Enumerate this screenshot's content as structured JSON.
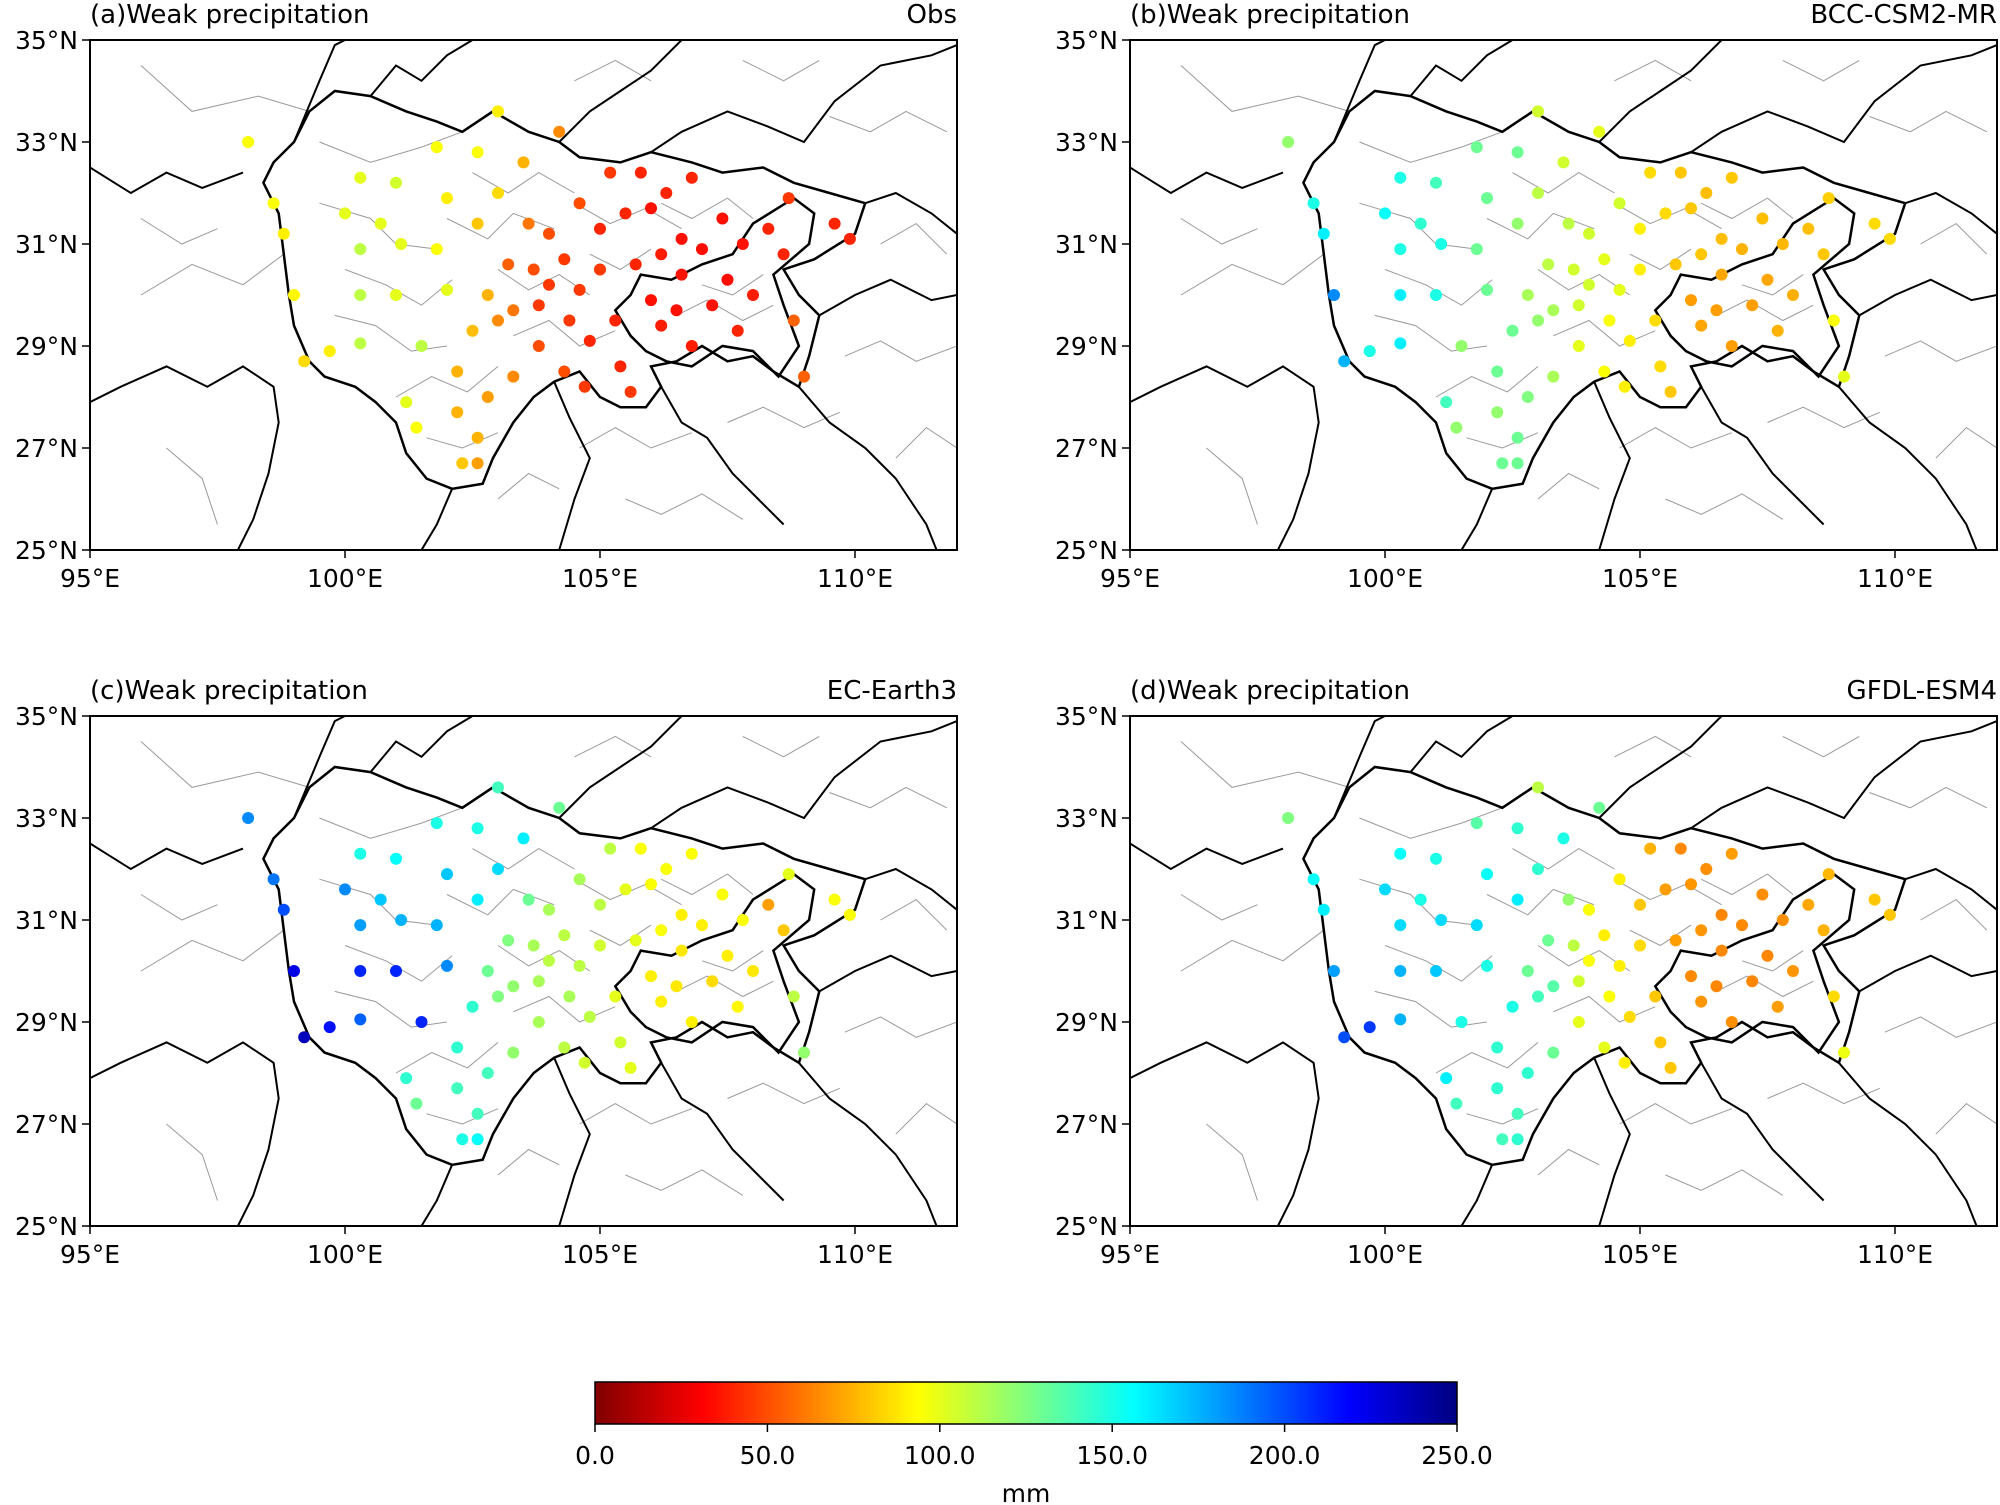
{
  "figure": {
    "colorbar": {
      "label": "mm",
      "min": 0,
      "max": 250,
      "ticks": [
        "0.0",
        "50.0",
        "100.0",
        "150.0",
        "200.0",
        "250.0"
      ],
      "colormap": [
        "#800000",
        "#ff0000",
        "#ff8000",
        "#ffff00",
        "#80ff80",
        "#00ffff",
        "#0080ff",
        "#0000ff",
        "#000080"
      ]
    },
    "panels": [
      {
        "title": "(a)Weak precipitation",
        "model": "Obs",
        "field": "obs"
      },
      {
        "title": "(b)Weak precipitation",
        "model": "BCC-CSM2-MR",
        "field": "bcc"
      },
      {
        "title": "(c)Weak precipitation",
        "model": "EC-Earth3",
        "field": "ec"
      },
      {
        "title": "(d)Weak precipitation",
        "model": "GFDL-ESM4",
        "field": "gfdl"
      }
    ],
    "axes": {
      "lon_range": [
        95,
        112
      ],
      "lat_range": [
        25,
        35
      ],
      "lon_ticks": [
        "95°E",
        "100°E",
        "105°E",
        "110°E"
      ],
      "lat_ticks": [
        "25°N",
        "27°N",
        "29°N",
        "31°N",
        "33°N",
        "35°N"
      ]
    },
    "stations_description": "station dots colored by weak precipitation (mm)"
  },
  "chart_data": {
    "type": "scatter",
    "colorbar_label": "mm",
    "value_range": [
      0,
      250
    ],
    "lon_range": [
      95,
      112
    ],
    "lat_range": [
      25,
      35
    ],
    "panels": [
      "Obs",
      "BCC-CSM2-MR",
      "EC-Earth3",
      "GFDL-ESM4"
    ],
    "stations": [
      {
        "lon": 98.1,
        "lat": 33.0,
        "obs": 95,
        "bcc": 120,
        "ec": 185,
        "gfdl": 125
      },
      {
        "lon": 98.6,
        "lat": 31.8,
        "obs": 95,
        "bcc": 150,
        "ec": 190,
        "gfdl": 155
      },
      {
        "lon": 98.8,
        "lat": 31.2,
        "obs": 90,
        "bcc": 160,
        "ec": 200,
        "gfdl": 160
      },
      {
        "lon": 99.0,
        "lat": 30.0,
        "obs": 92,
        "bcc": 185,
        "ec": 225,
        "gfdl": 180
      },
      {
        "lon": 99.2,
        "lat": 28.7,
        "obs": 85,
        "bcc": 175,
        "ec": 235,
        "gfdl": 200
      },
      {
        "lon": 99.7,
        "lat": 28.9,
        "obs": 90,
        "bcc": 150,
        "ec": 215,
        "gfdl": 205
      },
      {
        "lon": 100.0,
        "lat": 31.6,
        "obs": 100,
        "bcc": 155,
        "ec": 185,
        "gfdl": 165
      },
      {
        "lon": 100.3,
        "lat": 32.3,
        "obs": 100,
        "bcc": 150,
        "ec": 150,
        "gfdl": 155
      },
      {
        "lon": 100.3,
        "lat": 30.9,
        "obs": 110,
        "bcc": 150,
        "ec": 180,
        "gfdl": 165
      },
      {
        "lon": 100.3,
        "lat": 30.0,
        "obs": 110,
        "bcc": 160,
        "ec": 210,
        "gfdl": 175
      },
      {
        "lon": 100.3,
        "lat": 29.05,
        "obs": 110,
        "bcc": 160,
        "ec": 195,
        "gfdl": 175
      },
      {
        "lon": 100.7,
        "lat": 31.4,
        "obs": 100,
        "bcc": 145,
        "ec": 170,
        "gfdl": 150
      },
      {
        "lon": 101.0,
        "lat": 32.2,
        "obs": 105,
        "bcc": 140,
        "ec": 155,
        "gfdl": 150
      },
      {
        "lon": 101.1,
        "lat": 31.0,
        "obs": 100,
        "bcc": 150,
        "ec": 175,
        "gfdl": 165
      },
      {
        "lon": 101.0,
        "lat": 30.0,
        "obs": 100,
        "bcc": 150,
        "ec": 210,
        "gfdl": 170
      },
      {
        "lon": 101.5,
        "lat": 29.0,
        "obs": 110,
        "bcc": 120,
        "ec": 210,
        "gfdl": 150
      },
      {
        "lon": 101.2,
        "lat": 27.9,
        "obs": 100,
        "bcc": 140,
        "ec": 145,
        "gfdl": 160
      },
      {
        "lon": 101.4,
        "lat": 27.4,
        "obs": 95,
        "bcc": 120,
        "ec": 130,
        "gfdl": 140
      },
      {
        "lon": 101.8,
        "lat": 32.9,
        "obs": 95,
        "bcc": 130,
        "ec": 150,
        "gfdl": 135
      },
      {
        "lon": 101.8,
        "lat": 30.9,
        "obs": 95,
        "bcc": 130,
        "ec": 175,
        "gfdl": 165
      },
      {
        "lon": 102.0,
        "lat": 31.9,
        "obs": 90,
        "bcc": 130,
        "ec": 170,
        "gfdl": 155
      },
      {
        "lon": 102.0,
        "lat": 30.1,
        "obs": 100,
        "bcc": 130,
        "ec": 185,
        "gfdl": 150
      },
      {
        "lon": 102.2,
        "lat": 28.5,
        "obs": 75,
        "bcc": 130,
        "ec": 145,
        "gfdl": 145
      },
      {
        "lon": 102.2,
        "lat": 27.7,
        "obs": 75,
        "bcc": 120,
        "ec": 140,
        "gfdl": 145
      },
      {
        "lon": 102.3,
        "lat": 26.7,
        "obs": 80,
        "bcc": 130,
        "ec": 150,
        "gfdl": 140
      },
      {
        "lon": 102.6,
        "lat": 32.8,
        "obs": 95,
        "bcc": 130,
        "ec": 150,
        "gfdl": 145
      },
      {
        "lon": 102.6,
        "lat": 31.4,
        "obs": 80,
        "bcc": 120,
        "ec": 160,
        "gfdl": 160
      },
      {
        "lon": 102.5,
        "lat": 29.3,
        "obs": 78,
        "bcc": 130,
        "ec": 145,
        "gfdl": 150
      },
      {
        "lon": 102.6,
        "lat": 27.2,
        "obs": 75,
        "bcc": 130,
        "ec": 140,
        "gfdl": 140
      },
      {
        "lon": 102.6,
        "lat": 26.7,
        "obs": 70,
        "bcc": 130,
        "ec": 155,
        "gfdl": 145
      },
      {
        "lon": 103.0,
        "lat": 33.6,
        "obs": 90,
        "bcc": 105,
        "ec": 140,
        "gfdl": 110
      },
      {
        "lon": 103.0,
        "lat": 32.0,
        "obs": 85,
        "bcc": 110,
        "ec": 165,
        "gfdl": 145
      },
      {
        "lon": 102.8,
        "lat": 30.0,
        "obs": 75,
        "bcc": 115,
        "ec": 130,
        "gfdl": 130
      },
      {
        "lon": 103.0,
        "lat": 29.5,
        "obs": 65,
        "bcc": 120,
        "ec": 125,
        "gfdl": 140
      },
      {
        "lon": 102.8,
        "lat": 28.0,
        "obs": 70,
        "bcc": 125,
        "ec": 140,
        "gfdl": 145
      },
      {
        "lon": 103.2,
        "lat": 30.6,
        "obs": 55,
        "bcc": 110,
        "ec": 125,
        "gfdl": 130
      },
      {
        "lon": 103.3,
        "lat": 29.7,
        "obs": 60,
        "bcc": 115,
        "ec": 120,
        "gfdl": 135
      },
      {
        "lon": 103.3,
        "lat": 28.4,
        "obs": 65,
        "bcc": 115,
        "ec": 120,
        "gfdl": 130
      },
      {
        "lon": 103.5,
        "lat": 32.6,
        "obs": 75,
        "bcc": 105,
        "ec": 160,
        "gfdl": 150
      },
      {
        "lon": 103.6,
        "lat": 31.4,
        "obs": 60,
        "bcc": 110,
        "ec": 130,
        "gfdl": 120
      },
      {
        "lon": 103.7,
        "lat": 30.5,
        "obs": 50,
        "bcc": 105,
        "ec": 115,
        "gfdl": 110
      },
      {
        "lon": 103.8,
        "lat": 29.8,
        "obs": 45,
        "bcc": 105,
        "ec": 115,
        "gfdl": 105
      },
      {
        "lon": 103.8,
        "lat": 29.0,
        "obs": 50,
        "bcc": 100,
        "ec": 115,
        "gfdl": 100
      },
      {
        "lon": 104.0,
        "lat": 30.2,
        "obs": 45,
        "bcc": 105,
        "ec": 110,
        "gfdl": 95
      },
      {
        "lon": 104.2,
        "lat": 33.2,
        "obs": 65,
        "bcc": 100,
        "ec": 130,
        "gfdl": 130
      },
      {
        "lon": 104.0,
        "lat": 31.2,
        "obs": 50,
        "bcc": 105,
        "ec": 115,
        "gfdl": 95
      },
      {
        "lon": 104.3,
        "lat": 30.7,
        "obs": 45,
        "bcc": 100,
        "ec": 110,
        "gfdl": 90
      },
      {
        "lon": 104.4,
        "lat": 29.5,
        "obs": 45,
        "bcc": 95,
        "ec": 115,
        "gfdl": 95
      },
      {
        "lon": 104.3,
        "lat": 28.5,
        "obs": 50,
        "bcc": 95,
        "ec": 110,
        "gfdl": 100
      },
      {
        "lon": 104.6,
        "lat": 31.8,
        "obs": 50,
        "bcc": 105,
        "ec": 115,
        "gfdl": 90
      },
      {
        "lon": 104.6,
        "lat": 30.1,
        "obs": 45,
        "bcc": 100,
        "ec": 110,
        "gfdl": 90
      },
      {
        "lon": 104.8,
        "lat": 29.1,
        "obs": 40,
        "bcc": 90,
        "ec": 110,
        "gfdl": 85
      },
      {
        "lon": 104.7,
        "lat": 28.2,
        "obs": 45,
        "bcc": 90,
        "ec": 105,
        "gfdl": 90
      },
      {
        "lon": 105.0,
        "lat": 31.3,
        "obs": 40,
        "bcc": 90,
        "ec": 110,
        "gfdl": 80
      },
      {
        "lon": 105.0,
        "lat": 30.5,
        "obs": 45,
        "bcc": 90,
        "ec": 105,
        "gfdl": 85
      },
      {
        "lon": 105.2,
        "lat": 32.4,
        "obs": 45,
        "bcc": 85,
        "ec": 110,
        "gfdl": 75
      },
      {
        "lon": 105.3,
        "lat": 29.5,
        "obs": 40,
        "bcc": 85,
        "ec": 100,
        "gfdl": 80
      },
      {
        "lon": 105.4,
        "lat": 28.6,
        "obs": 40,
        "bcc": 85,
        "ec": 105,
        "gfdl": 80
      },
      {
        "lon": 105.5,
        "lat": 31.6,
        "obs": 40,
        "bcc": 85,
        "ec": 100,
        "gfdl": 70
      },
      {
        "lon": 105.7,
        "lat": 30.6,
        "obs": 40,
        "bcc": 80,
        "ec": 100,
        "gfdl": 70
      },
      {
        "lon": 105.6,
        "lat": 28.1,
        "obs": 45,
        "bcc": 80,
        "ec": 100,
        "gfdl": 80
      },
      {
        "lon": 105.8,
        "lat": 32.4,
        "obs": 40,
        "bcc": 80,
        "ec": 95,
        "gfdl": 65
      },
      {
        "lon": 106.0,
        "lat": 31.7,
        "obs": 35,
        "bcc": 80,
        "ec": 95,
        "gfdl": 68
      },
      {
        "lon": 106.0,
        "lat": 29.9,
        "obs": 35,
        "bcc": 70,
        "ec": 90,
        "gfdl": 65
      },
      {
        "lon": 106.2,
        "lat": 30.8,
        "obs": 38,
        "bcc": 80,
        "ec": 95,
        "gfdl": 68
      },
      {
        "lon": 106.2,
        "lat": 29.4,
        "obs": 38,
        "bcc": 72,
        "ec": 90,
        "gfdl": 68
      },
      {
        "lon": 106.3,
        "lat": 32.0,
        "obs": 40,
        "bcc": 78,
        "ec": 95,
        "gfdl": 66
      },
      {
        "lon": 106.5,
        "lat": 29.7,
        "obs": 35,
        "bcc": 70,
        "ec": 88,
        "gfdl": 64
      },
      {
        "lon": 106.6,
        "lat": 31.1,
        "obs": 35,
        "bcc": 78,
        "ec": 90,
        "gfdl": 64
      },
      {
        "lon": 106.6,
        "lat": 30.4,
        "obs": 36,
        "bcc": 72,
        "ec": 88,
        "gfdl": 65
      },
      {
        "lon": 106.8,
        "lat": 29.0,
        "obs": 38,
        "bcc": 70,
        "ec": 90,
        "gfdl": 66
      },
      {
        "lon": 106.8,
        "lat": 32.3,
        "obs": 40,
        "bcc": 80,
        "ec": 95,
        "gfdl": 70
      },
      {
        "lon": 107.0,
        "lat": 30.9,
        "obs": 34,
        "bcc": 75,
        "ec": 90,
        "gfdl": 65
      },
      {
        "lon": 107.2,
        "lat": 29.8,
        "obs": 36,
        "bcc": 70,
        "ec": 85,
        "gfdl": 64
      },
      {
        "lon": 107.4,
        "lat": 31.5,
        "obs": 35,
        "bcc": 78,
        "ec": 95,
        "gfdl": 66
      },
      {
        "lon": 107.5,
        "lat": 30.3,
        "obs": 34,
        "bcc": 72,
        "ec": 90,
        "gfdl": 64
      },
      {
        "lon": 107.7,
        "lat": 29.3,
        "obs": 40,
        "bcc": 75,
        "ec": 92,
        "gfdl": 70
      },
      {
        "lon": 107.8,
        "lat": 31.0,
        "obs": 36,
        "bcc": 76,
        "ec": 95,
        "gfdl": 66
      },
      {
        "lon": 108.0,
        "lat": 30.0,
        "obs": 38,
        "bcc": 74,
        "ec": 88,
        "gfdl": 68
      },
      {
        "lon": 108.3,
        "lat": 31.3,
        "obs": 40,
        "bcc": 78,
        "ec": 70,
        "gfdl": 72
      },
      {
        "lon": 108.6,
        "lat": 30.8,
        "obs": 40,
        "bcc": 80,
        "ec": 80,
        "gfdl": 75
      },
      {
        "lon": 108.7,
        "lat": 31.9,
        "obs": 45,
        "bcc": 82,
        "ec": 100,
        "gfdl": 76
      },
      {
        "lon": 108.8,
        "lat": 29.5,
        "obs": 55,
        "bcc": 95,
        "ec": 110,
        "gfdl": 85
      },
      {
        "lon": 109.0,
        "lat": 28.4,
        "obs": 55,
        "bcc": 100,
        "ec": 120,
        "gfdl": 98
      },
      {
        "lon": 109.6,
        "lat": 31.4,
        "obs": 40,
        "bcc": 85,
        "ec": 95,
        "gfdl": 80
      },
      {
        "lon": 109.9,
        "lat": 31.1,
        "obs": 40,
        "bcc": 85,
        "ec": 95,
        "gfdl": 80
      }
    ]
  }
}
